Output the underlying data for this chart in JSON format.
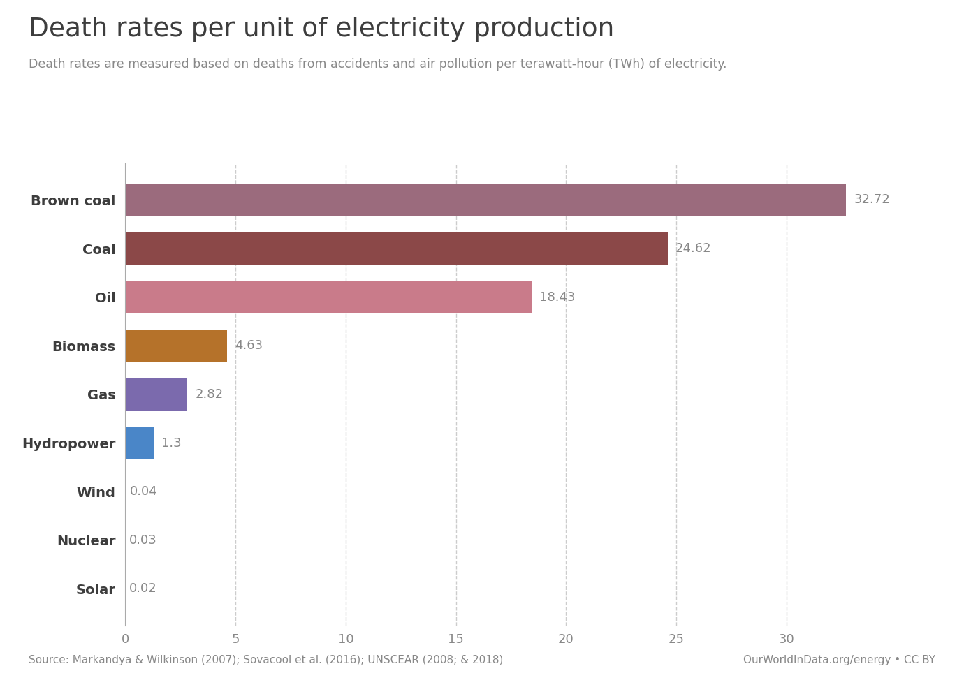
{
  "title": "Death rates per unit of electricity production",
  "subtitle": "Death rates are measured based on deaths from accidents and air pollution per terawatt-hour (TWh) of electricity.",
  "categories": [
    "Brown coal",
    "Coal",
    "Oil",
    "Biomass",
    "Gas",
    "Hydropower",
    "Wind",
    "Nuclear",
    "Solar"
  ],
  "values": [
    32.72,
    24.62,
    18.43,
    4.63,
    2.82,
    1.3,
    0.04,
    0.03,
    0.02
  ],
  "bar_colors": [
    "#9b6b7d",
    "#8b4848",
    "#c97b8a",
    "#b5722a",
    "#7b6aad",
    "#4a86c8",
    "#c8c8c8",
    "#7abfbf",
    "#c8c8c8"
  ],
  "background_color": "#ffffff",
  "title_color": "#3d3d3d",
  "subtitle_color": "#888888",
  "label_color": "#3d3d3d",
  "value_color": "#888888",
  "tick_color": "#888888",
  "grid_color": "#cccccc",
  "source_text": "Source: Markandya & Wilkinson (2007); Sovacool et al. (2016); UNSCEAR (2008; & 2018)",
  "source_url": "OurWorldInData.org/energy • CC BY",
  "owid_box_color": "#1a2d5a",
  "owid_red_color": "#c0392b",
  "xlim": [
    0,
    35
  ],
  "xticks": [
    0,
    5,
    10,
    15,
    20,
    25,
    30
  ]
}
